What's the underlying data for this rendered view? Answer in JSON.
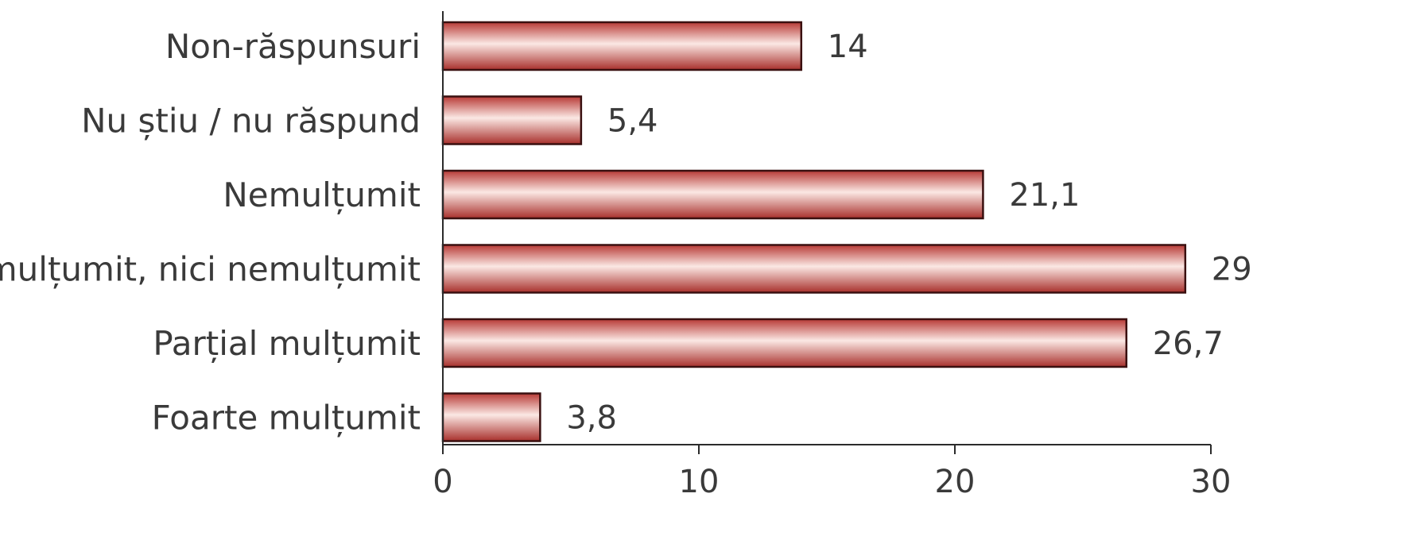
{
  "chart_data": {
    "type": "bar",
    "orientation": "horizontal",
    "title": "",
    "xlabel": "",
    "ylabel": "",
    "categories": [
      "Non-răspunsuri",
      "Nu știu / nu răspund",
      "Nemulțumit",
      "Nici mulțumit, nici nemulțumit",
      "Parțial mulțumit",
      "Foarte mulțumit"
    ],
    "values": [
      14,
      5.4,
      21.1,
      29,
      26.7,
      3.8
    ],
    "value_labels": [
      "14",
      "5,4",
      "21,1",
      "29",
      "26,7",
      "3,8"
    ],
    "xlim": [
      0,
      30
    ],
    "xticks": [
      0,
      10,
      20,
      30
    ],
    "xtick_labels": [
      "0",
      "10",
      "20",
      "30"
    ],
    "grid": false,
    "legend": "none",
    "colors": {
      "bar_dark": "#b83a36",
      "bar_light": "#fbe8e4",
      "bar_edge": "#3a1010"
    }
  }
}
